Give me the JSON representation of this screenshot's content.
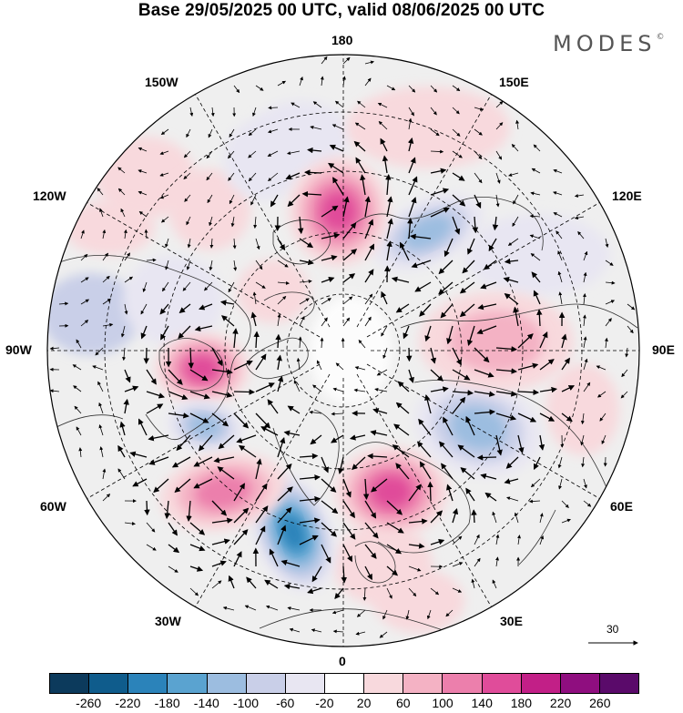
{
  "header": {
    "title": "Base 29/05/2025 00 UTC, valid 08/06/2025 00 UTC",
    "brand": "MODES",
    "brand_mark": "©"
  },
  "map": {
    "projection": "north-polar-stereographic",
    "longitude_labels": {
      "top": "180",
      "bottom": "0",
      "left": "90W",
      "right": "90E",
      "upper_left_1": "150W",
      "upper_left_2": "120W",
      "upper_right_1": "150E",
      "upper_right_2": "120E",
      "lower_left_1": "60W",
      "lower_left_2": "30W",
      "lower_right_1": "60E",
      "lower_right_2": "30E"
    },
    "reference_vector": "30",
    "anomaly_centres": [
      {
        "region": "north-atlantic",
        "sign": "negative",
        "level": -180
      },
      {
        "region": "europe",
        "sign": "positive",
        "level": 140
      },
      {
        "region": "western-siberia",
        "sign": "negative",
        "level": -100
      },
      {
        "region": "central-siberia",
        "sign": "positive",
        "level": 60
      },
      {
        "region": "eastern-siberia",
        "sign": "negative",
        "level": -100
      },
      {
        "region": "bering-sea",
        "sign": "positive",
        "level": 140
      },
      {
        "region": "hudson-bay",
        "sign": "positive",
        "level": 140
      },
      {
        "region": "labrador",
        "sign": "negative",
        "level": -100
      },
      {
        "region": "mid-atlantic",
        "sign": "positive",
        "level": 100
      }
    ]
  },
  "colorbar": {
    "colors": [
      "#0c3a5c",
      "#0f5c8c",
      "#2b83ba",
      "#5aa3d0",
      "#9cbde0",
      "#c9cfe8",
      "#e8e6f2",
      "#ffffff",
      "#f8d9dd",
      "#f4b2c4",
      "#ec7fac",
      "#e04c9a",
      "#c21f87",
      "#8f0e7f",
      "#5a0a6a"
    ],
    "ticks": [
      "-260",
      "-220",
      "-180",
      "-140",
      "-100",
      "-60",
      "-20",
      "20",
      "60",
      "100",
      "140",
      "180",
      "220",
      "260"
    ]
  }
}
